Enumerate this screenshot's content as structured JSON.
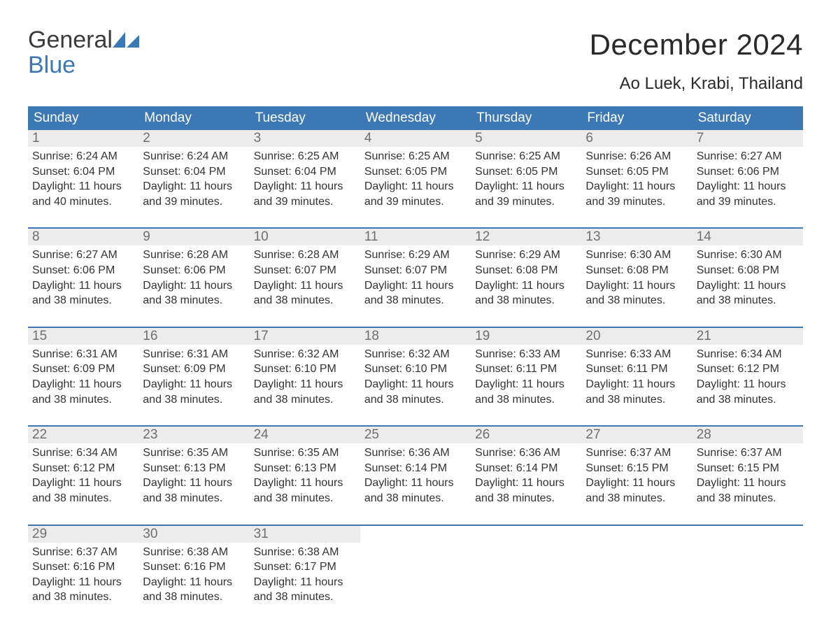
{
  "logo": {
    "word1": "General",
    "word2": "Blue",
    "mark_color": "#3c78b4"
  },
  "title": "December 2024",
  "location": "Ao Luek, Krabi, Thailand",
  "colors": {
    "header_bg": "#3c78b4",
    "band_bg": "#ececec",
    "text": "#333333",
    "daynum": "#6f6f6f",
    "page_bg": "#ffffff"
  },
  "fonts": {
    "title_size_pt": 42,
    "location_size_pt": 24,
    "weekday_size_pt": 19,
    "body_size_pt": 16
  },
  "layout": {
    "columns": 7,
    "rows": 5
  },
  "weekdays": [
    "Sunday",
    "Monday",
    "Tuesday",
    "Wednesday",
    "Thursday",
    "Friday",
    "Saturday"
  ],
  "days": [
    {
      "n": 1,
      "sunrise": "6:24 AM",
      "sunset": "6:04 PM",
      "daylight": "11 hours and 40 minutes."
    },
    {
      "n": 2,
      "sunrise": "6:24 AM",
      "sunset": "6:04 PM",
      "daylight": "11 hours and 39 minutes."
    },
    {
      "n": 3,
      "sunrise": "6:25 AM",
      "sunset": "6:04 PM",
      "daylight": "11 hours and 39 minutes."
    },
    {
      "n": 4,
      "sunrise": "6:25 AM",
      "sunset": "6:05 PM",
      "daylight": "11 hours and 39 minutes."
    },
    {
      "n": 5,
      "sunrise": "6:25 AM",
      "sunset": "6:05 PM",
      "daylight": "11 hours and 39 minutes."
    },
    {
      "n": 6,
      "sunrise": "6:26 AM",
      "sunset": "6:05 PM",
      "daylight": "11 hours and 39 minutes."
    },
    {
      "n": 7,
      "sunrise": "6:27 AM",
      "sunset": "6:06 PM",
      "daylight": "11 hours and 39 minutes."
    },
    {
      "n": 8,
      "sunrise": "6:27 AM",
      "sunset": "6:06 PM",
      "daylight": "11 hours and 38 minutes."
    },
    {
      "n": 9,
      "sunrise": "6:28 AM",
      "sunset": "6:06 PM",
      "daylight": "11 hours and 38 minutes."
    },
    {
      "n": 10,
      "sunrise": "6:28 AM",
      "sunset": "6:07 PM",
      "daylight": "11 hours and 38 minutes."
    },
    {
      "n": 11,
      "sunrise": "6:29 AM",
      "sunset": "6:07 PM",
      "daylight": "11 hours and 38 minutes."
    },
    {
      "n": 12,
      "sunrise": "6:29 AM",
      "sunset": "6:08 PM",
      "daylight": "11 hours and 38 minutes."
    },
    {
      "n": 13,
      "sunrise": "6:30 AM",
      "sunset": "6:08 PM",
      "daylight": "11 hours and 38 minutes."
    },
    {
      "n": 14,
      "sunrise": "6:30 AM",
      "sunset": "6:08 PM",
      "daylight": "11 hours and 38 minutes."
    },
    {
      "n": 15,
      "sunrise": "6:31 AM",
      "sunset": "6:09 PM",
      "daylight": "11 hours and 38 minutes."
    },
    {
      "n": 16,
      "sunrise": "6:31 AM",
      "sunset": "6:09 PM",
      "daylight": "11 hours and 38 minutes."
    },
    {
      "n": 17,
      "sunrise": "6:32 AM",
      "sunset": "6:10 PM",
      "daylight": "11 hours and 38 minutes."
    },
    {
      "n": 18,
      "sunrise": "6:32 AM",
      "sunset": "6:10 PM",
      "daylight": "11 hours and 38 minutes."
    },
    {
      "n": 19,
      "sunrise": "6:33 AM",
      "sunset": "6:11 PM",
      "daylight": "11 hours and 38 minutes."
    },
    {
      "n": 20,
      "sunrise": "6:33 AM",
      "sunset": "6:11 PM",
      "daylight": "11 hours and 38 minutes."
    },
    {
      "n": 21,
      "sunrise": "6:34 AM",
      "sunset": "6:12 PM",
      "daylight": "11 hours and 38 minutes."
    },
    {
      "n": 22,
      "sunrise": "6:34 AM",
      "sunset": "6:12 PM",
      "daylight": "11 hours and 38 minutes."
    },
    {
      "n": 23,
      "sunrise": "6:35 AM",
      "sunset": "6:13 PM",
      "daylight": "11 hours and 38 minutes."
    },
    {
      "n": 24,
      "sunrise": "6:35 AM",
      "sunset": "6:13 PM",
      "daylight": "11 hours and 38 minutes."
    },
    {
      "n": 25,
      "sunrise": "6:36 AM",
      "sunset": "6:14 PM",
      "daylight": "11 hours and 38 minutes."
    },
    {
      "n": 26,
      "sunrise": "6:36 AM",
      "sunset": "6:14 PM",
      "daylight": "11 hours and 38 minutes."
    },
    {
      "n": 27,
      "sunrise": "6:37 AM",
      "sunset": "6:15 PM",
      "daylight": "11 hours and 38 minutes."
    },
    {
      "n": 28,
      "sunrise": "6:37 AM",
      "sunset": "6:15 PM",
      "daylight": "11 hours and 38 minutes."
    },
    {
      "n": 29,
      "sunrise": "6:37 AM",
      "sunset": "6:16 PM",
      "daylight": "11 hours and 38 minutes."
    },
    {
      "n": 30,
      "sunrise": "6:38 AM",
      "sunset": "6:16 PM",
      "daylight": "11 hours and 38 minutes."
    },
    {
      "n": 31,
      "sunrise": "6:38 AM",
      "sunset": "6:17 PM",
      "daylight": "11 hours and 38 minutes."
    }
  ],
  "labels": {
    "sunrise": "Sunrise: ",
    "sunset": "Sunset: ",
    "daylight": "Daylight: "
  }
}
